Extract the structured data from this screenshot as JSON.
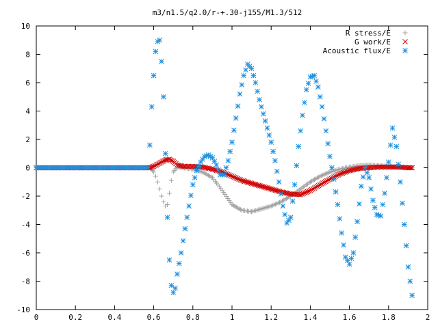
{
  "chart_data": {
    "type": "scatter",
    "title": "m3/n1.5/q2.0/r-+.30-j155/M1.3/512",
    "xlabel": "",
    "ylabel": "",
    "xlim": [
      0,
      2
    ],
    "ylim": [
      -10,
      10
    ],
    "xticks": [
      "0",
      "0.2",
      "0.4",
      "0.6",
      "0.8",
      "1",
      "1.2",
      "1.4",
      "1.6",
      "1.8",
      "2"
    ],
    "yticks": [
      "10",
      "8",
      "6",
      "4",
      "2",
      "0",
      "-2",
      "-4",
      "-6",
      "-8",
      "-10"
    ],
    "grid": false,
    "legend_position": "top-right",
    "series": [
      {
        "name": "R stress/E",
        "marker": "plus",
        "color": "#a0a0a0",
        "x": [
          0.0,
          0.58,
          0.6,
          0.61,
          0.62,
          0.63,
          0.64,
          0.65,
          0.66,
          0.67,
          0.68,
          0.69,
          0.7,
          0.72,
          0.75,
          0.8,
          0.85,
          0.9,
          0.95,
          1.0,
          1.05,
          1.1,
          1.15,
          1.2,
          1.25,
          1.3,
          1.35,
          1.4,
          1.45,
          1.5,
          1.55,
          1.6,
          1.65,
          1.7,
          1.75,
          1.8,
          1.85,
          1.9,
          1.92
        ],
        "y": [
          0.0,
          0.0,
          -0.3,
          -0.6,
          -1.0,
          -1.5,
          -2.0,
          -2.4,
          -2.7,
          -2.6,
          -1.8,
          -0.9,
          -0.3,
          0.05,
          0.0,
          -0.1,
          -0.3,
          -0.7,
          -1.6,
          -2.6,
          -3.0,
          -3.1,
          -2.9,
          -2.7,
          -2.4,
          -2.0,
          -1.5,
          -1.0,
          -0.6,
          -0.3,
          -0.1,
          0.05,
          0.15,
          0.2,
          0.15,
          0.1,
          0.05,
          0.0,
          0.0
        ]
      },
      {
        "name": "G work/E",
        "marker": "cross",
        "color": "#d00000",
        "x": [
          0.0,
          0.58,
          0.6,
          0.62,
          0.64,
          0.66,
          0.68,
          0.7,
          0.72,
          0.75,
          0.8,
          0.85,
          0.9,
          0.95,
          1.0,
          1.05,
          1.1,
          1.15,
          1.2,
          1.25,
          1.3,
          1.35,
          1.4,
          1.45,
          1.5,
          1.55,
          1.6,
          1.65,
          1.7,
          1.75,
          1.8,
          1.85,
          1.9,
          1.92
        ],
        "y": [
          0.0,
          0.0,
          0.1,
          0.25,
          0.4,
          0.55,
          0.6,
          0.45,
          0.2,
          0.1,
          0.1,
          0.05,
          -0.1,
          -0.3,
          -0.6,
          -0.9,
          -1.1,
          -1.3,
          -1.5,
          -1.7,
          -1.85,
          -1.9,
          -1.6,
          -1.2,
          -0.8,
          -0.45,
          -0.2,
          -0.05,
          0.0,
          0.05,
          0.05,
          0.05,
          0.0,
          0.0
        ]
      },
      {
        "name": "Acoustic flux/E",
        "marker": "star",
        "color": "#1e90e0",
        "x": [
          0.0,
          0.57,
          0.58,
          0.59,
          0.6,
          0.61,
          0.62,
          0.63,
          0.64,
          0.65,
          0.66,
          0.67,
          0.68,
          0.69,
          0.7,
          0.71,
          0.72,
          0.74,
          0.76,
          0.78,
          0.8,
          0.82,
          0.84,
          0.86,
          0.88,
          0.9,
          0.92,
          0.94,
          0.96,
          0.98,
          1.0,
          1.02,
          1.04,
          1.06,
          1.08,
          1.1,
          1.12,
          1.14,
          1.16,
          1.18,
          1.2,
          1.22,
          1.24,
          1.26,
          1.28,
          1.3,
          1.32,
          1.34,
          1.36,
          1.38,
          1.4,
          1.42,
          1.44,
          1.46,
          1.48,
          1.5,
          1.52,
          1.54,
          1.56,
          1.58,
          1.6,
          1.62,
          1.64,
          1.66,
          1.68,
          1.7,
          1.72,
          1.74,
          1.76,
          1.78,
          1.8,
          1.82,
          1.84,
          1.86,
          1.88,
          1.9,
          1.92
        ],
        "y": [
          0.0,
          0.0,
          1.6,
          4.3,
          6.5,
          8.2,
          8.9,
          9.0,
          7.5,
          5.0,
          1.0,
          -3.5,
          -6.5,
          -8.3,
          -8.8,
          -8.5,
          -7.5,
          -6.0,
          -4.3,
          -2.7,
          -1.2,
          -0.2,
          0.4,
          0.8,
          0.9,
          0.7,
          0.2,
          -0.5,
          -0.5,
          0.5,
          1.8,
          3.5,
          5.2,
          6.5,
          7.3,
          7.0,
          6.0,
          4.8,
          3.8,
          2.8,
          1.8,
          0.5,
          -1.0,
          -2.7,
          -3.9,
          -3.5,
          -1.2,
          1.5,
          3.7,
          5.5,
          6.4,
          6.5,
          5.7,
          4.3,
          2.6,
          0.8,
          -0.8,
          -2.6,
          -4.6,
          -6.3,
          -6.8,
          -6.0,
          -3.8,
          -1.3,
          0.0,
          -0.7,
          -2.3,
          -3.3,
          -3.4,
          -1.8,
          0.4,
          2.8,
          1.5,
          -1.0,
          -4.0,
          -7.0,
          -9.0
        ]
      }
    ]
  }
}
